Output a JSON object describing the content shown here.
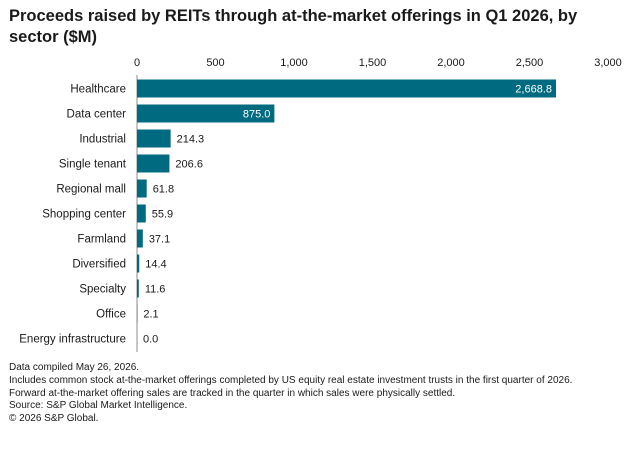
{
  "title": "Proceeds raised by REITs through at-the-market offerings in Q1 2026, by sector ($M)",
  "notes": [
    "Data compiled May 26, 2026.",
    "Includes common stock at-the-market offerings completed by US equity real estate investment trusts in the first quarter of 2026.",
    "Forward at-the-market offering sales are tracked in the quarter in which sales were physically settled.",
    "Source: S&P Global Market Intelligence.",
    "© 2026 S&P Global."
  ],
  "colors": {
    "bar": "#006b80",
    "axis": "#8c8c8c",
    "grid": "#d9d9d9",
    "label_inside": "#ffffff",
    "label_outside": "#1a1a1a"
  },
  "chart_data": {
    "type": "bar",
    "orientation": "horizontal",
    "categories": [
      "Healthcare",
      "Data center",
      "Industrial",
      "Single tenant",
      "Regional mall",
      "Shopping center",
      "Farmland",
      "Diversified",
      "Specialty",
      "Office",
      "Energy infrastructure"
    ],
    "values": [
      2668.8,
      875.0,
      214.3,
      206.6,
      61.8,
      55.9,
      37.1,
      14.4,
      11.6,
      2.1,
      0.0
    ],
    "value_labels": [
      "2,668.8",
      "875.0",
      "214.3",
      "206.6",
      "61.8",
      "55.9",
      "37.1",
      "14.4",
      "11.6",
      "2.1",
      "0.0"
    ],
    "xlim": [
      0,
      3000
    ],
    "ticks": [
      0,
      500,
      1000,
      1500,
      2000,
      2500,
      3000
    ],
    "tick_labels": [
      "0",
      "500",
      "1,000",
      "1,500",
      "2,000",
      "2,500",
      "3,000"
    ],
    "axis_position": "top",
    "grid": false,
    "legend": "none"
  }
}
